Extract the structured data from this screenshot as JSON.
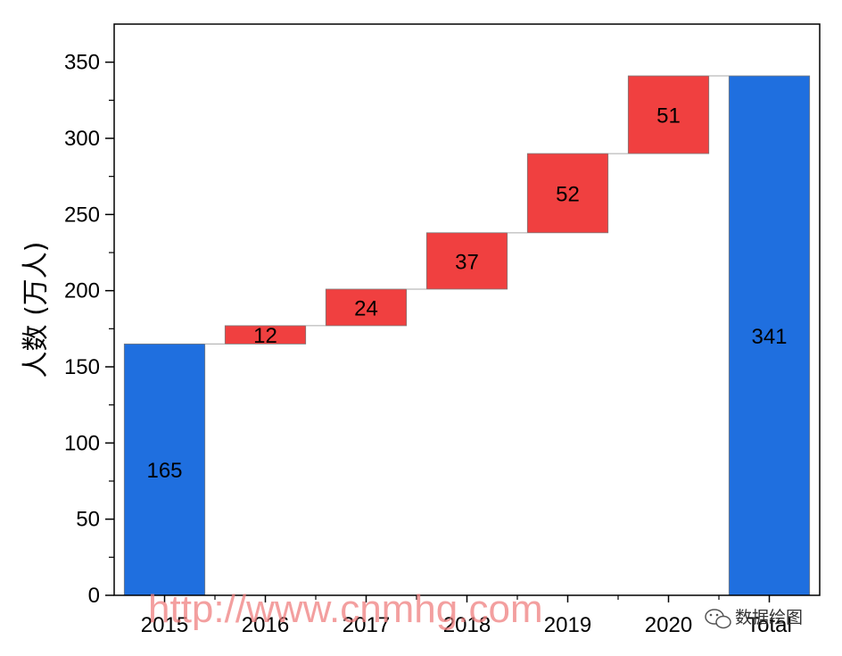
{
  "chart_data": {
    "type": "bar",
    "subtype": "waterfall",
    "categories": [
      "2015",
      "2016",
      "2017",
      "2018",
      "2019",
      "2020",
      "Total"
    ],
    "values": [
      165,
      12,
      24,
      37,
      52,
      51,
      341
    ],
    "bar_kind": [
      "total",
      "increase",
      "increase",
      "increase",
      "increase",
      "increase",
      "total"
    ],
    "data_labels": [
      "165",
      "12",
      "24",
      "37",
      "52",
      "51",
      "341"
    ],
    "ylabel": "人数 (万人)",
    "ylim": [
      0,
      375
    ],
    "yticks": [
      0,
      50,
      100,
      150,
      200,
      250,
      300,
      350
    ],
    "ytick_labels": [
      "0",
      "50",
      "100",
      "150",
      "200",
      "250",
      "300",
      "350"
    ],
    "grid": false,
    "colors": {
      "total": "#1f6fdf",
      "increase": "#f04040",
      "connector": "#aaaaaa"
    }
  },
  "watermark": {
    "text": "http://www.cnmhg.com"
  },
  "logo": {
    "text": "数据绘图",
    "icon": "wechat-icon"
  }
}
